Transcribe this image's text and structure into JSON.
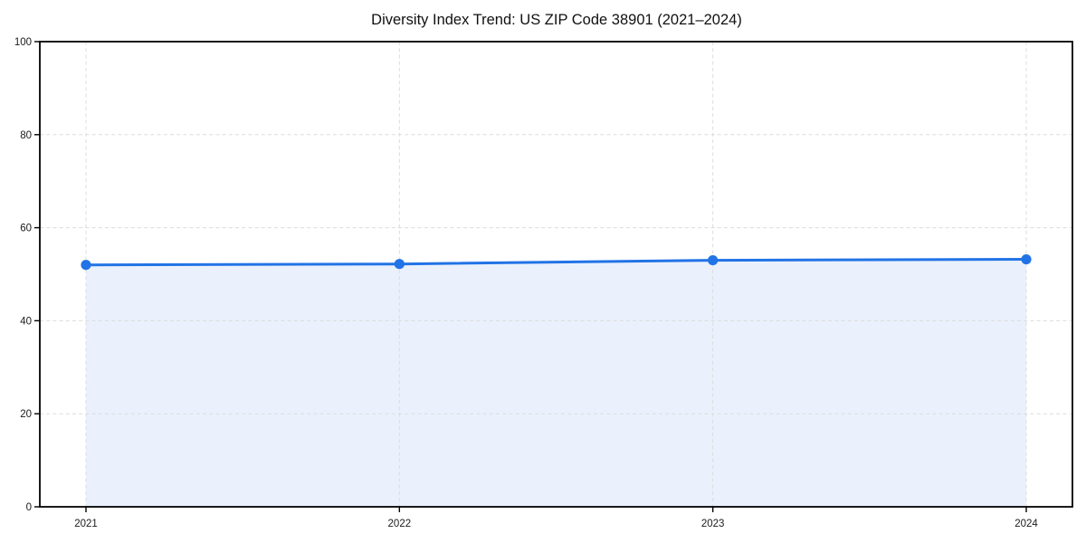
{
  "page": {
    "background": "#ffffff"
  },
  "chart_data": {
    "type": "line",
    "title": "Diversity Index Trend: US ZIP Code 38901 (2021–2024)",
    "xlabel": "",
    "ylabel": "",
    "x": [
      2021,
      2022,
      2023,
      2024
    ],
    "x_labels": [
      "2021",
      "2022",
      "2023",
      "2024"
    ],
    "series": [
      {
        "name": "Diversity Index",
        "values": [
          52.0,
          52.2,
          53.0,
          53.2
        ]
      }
    ],
    "ylim": [
      0,
      100
    ],
    "yticks": [
      0,
      20,
      40,
      60,
      80,
      100
    ],
    "ytick_labels": [
      "0",
      "20",
      "40",
      "60",
      "80",
      "100"
    ],
    "grid": "dashed horizontal and vertical",
    "legend": "none",
    "area_fill": true,
    "marker": "circle",
    "colors": {
      "line": "#2273e6",
      "marker": "#2273e6",
      "area_fill": "#eaf1fc",
      "grid": "#dcdcdc",
      "spine": "#000000",
      "tick_text": "#1a1a1a",
      "title_text": "#111111",
      "plot_background": "#ffffff"
    }
  }
}
